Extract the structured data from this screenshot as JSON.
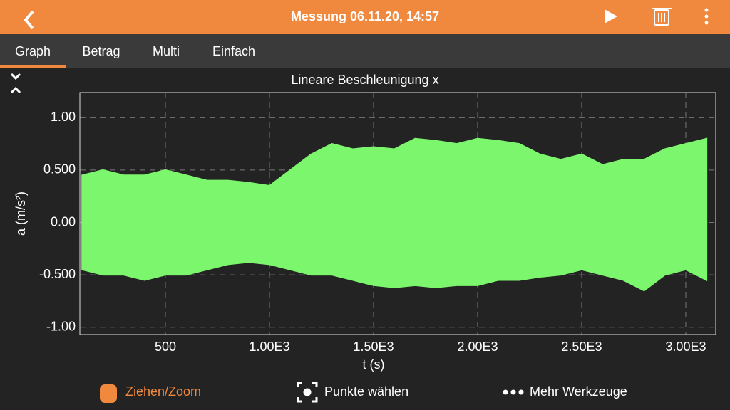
{
  "header": {
    "title": "Messung 06.11.20, 14:57"
  },
  "tabs": [
    "Graph",
    "Betrag",
    "Multi",
    "Einfach"
  ],
  "chart_data": {
    "type": "band",
    "title": "Lineare Beschleunigung x",
    "x_label": "t (s)",
    "y_label": "a (m/s²)",
    "color": "#7cf66c",
    "x": [
      100,
      200,
      300,
      400,
      500,
      600,
      700,
      800,
      900,
      1000,
      1100,
      1200,
      1300,
      1400,
      1500,
      1600,
      1700,
      1800,
      1900,
      2000,
      2100,
      2200,
      2300,
      2400,
      2500,
      2600,
      2700,
      2800,
      2900,
      3000,
      3100
    ],
    "upper": [
      0.45,
      0.5,
      0.45,
      0.45,
      0.5,
      0.45,
      0.4,
      0.4,
      0.38,
      0.35,
      0.5,
      0.65,
      0.75,
      0.7,
      0.72,
      0.7,
      0.8,
      0.78,
      0.75,
      0.8,
      0.78,
      0.75,
      0.65,
      0.6,
      0.65,
      0.55,
      0.6,
      0.6,
      0.7,
      0.75,
      0.8
    ],
    "lower": [
      -0.45,
      -0.5,
      -0.5,
      -0.55,
      -0.5,
      -0.5,
      -0.45,
      -0.4,
      -0.38,
      -0.4,
      -0.45,
      -0.5,
      -0.5,
      -0.55,
      -0.6,
      -0.62,
      -0.6,
      -0.62,
      -0.6,
      -0.6,
      -0.55,
      -0.55,
      -0.52,
      -0.5,
      -0.45,
      -0.5,
      -0.55,
      -0.65,
      -0.5,
      -0.45,
      -0.55
    ],
    "xlim": [
      89,
      3144
    ],
    "ylim": [
      -1.07,
      1.24
    ],
    "xticks": [
      500,
      {
        "value": 1000,
        "label": "1.00E3"
      },
      {
        "value": 1500,
        "label": "1.50E3"
      },
      {
        "value": 2000,
        "label": "2.00E3"
      },
      {
        "value": 2500,
        "label": "2.50E3"
      },
      {
        "value": 3000,
        "label": "3.00E3"
      }
    ],
    "yticks": [
      {
        "value": -1,
        "label": "-1.00"
      },
      {
        "value": -0.5,
        "label": "-0.500"
      },
      {
        "value": 0,
        "label": "0.00"
      },
      {
        "value": 0.5,
        "label": "0.500"
      },
      {
        "value": 1,
        "label": "1.00"
      }
    ],
    "grid": true
  },
  "toolbar": [
    "Ziehen/Zoom",
    "Punkte wählen",
    "Mehr Werkzeuge"
  ]
}
